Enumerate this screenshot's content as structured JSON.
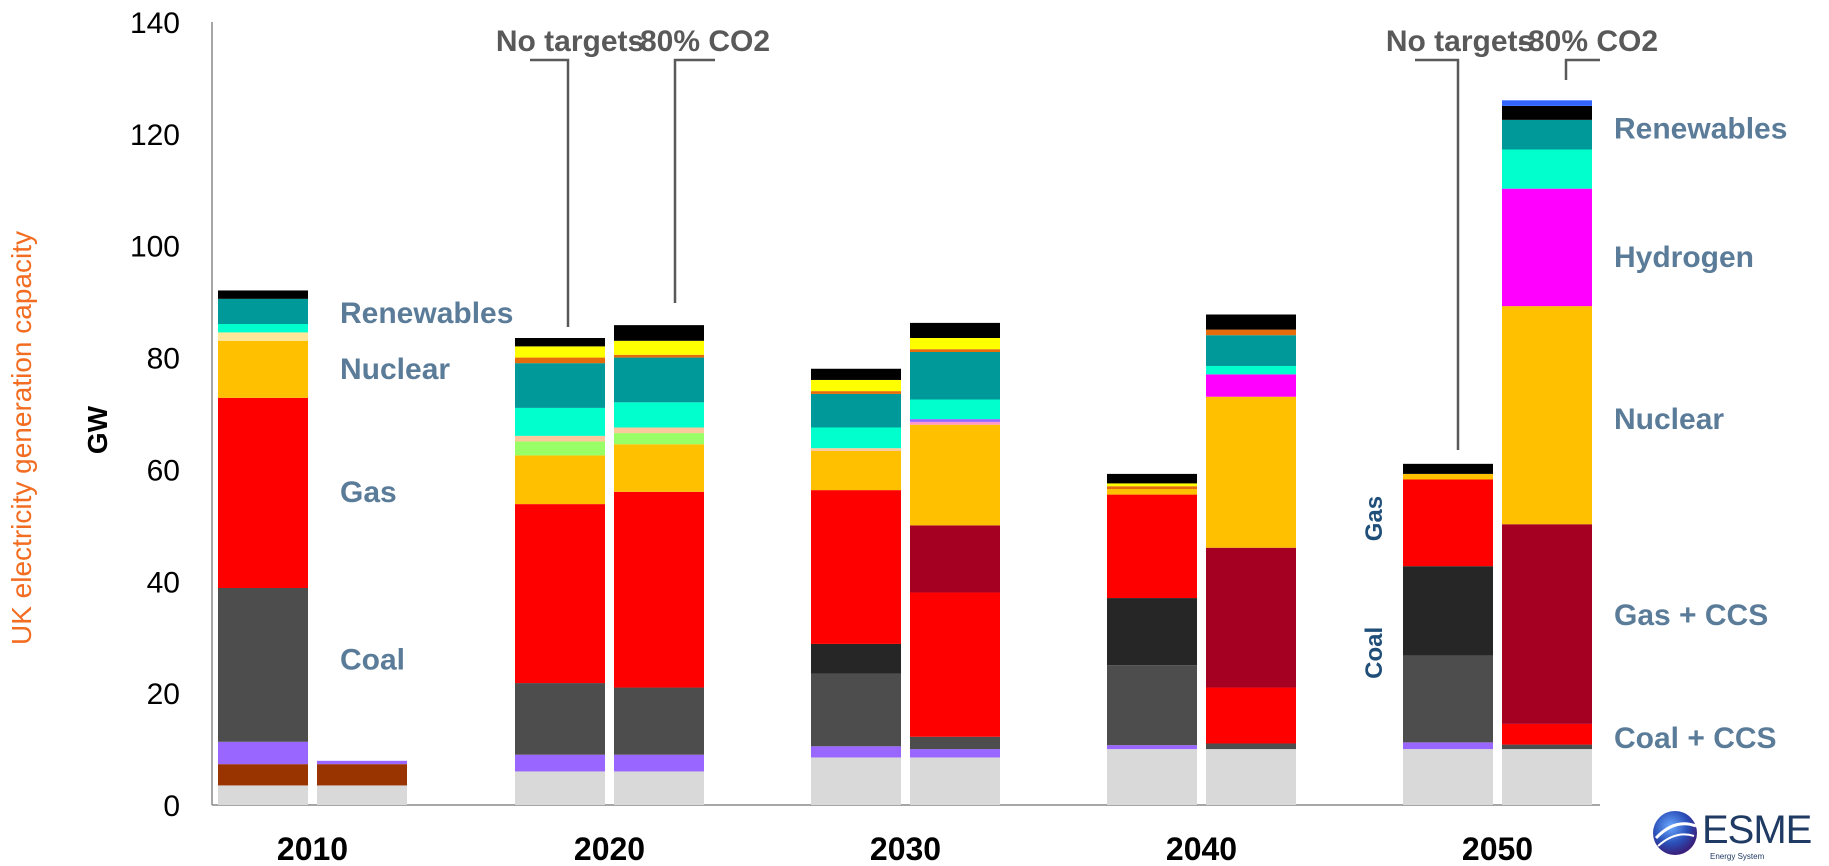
{
  "chart_data": {
    "type": "bar",
    "stacked": true,
    "side_title": "UK electricity generation capacity",
    "ylabel": "GW",
    "ylim": [
      0,
      140
    ],
    "yticks": [
      "0",
      "20",
      "40",
      "60",
      "80",
      "100",
      "120",
      "140"
    ],
    "groups": [
      "2010",
      "2020",
      "2030",
      "2040",
      "2050"
    ],
    "scenario_labels": [
      {
        "group": "2020",
        "text": "No targets"
      },
      {
        "group": "2020",
        "text": "-80% CO2"
      },
      {
        "group": "2050",
        "text": "No targets"
      },
      {
        "group": "2050",
        "text": "-80% CO2"
      }
    ],
    "segment_colors": {
      "base_grey": "#d9d9d9",
      "brown": "#993300",
      "violet": "#9966ff",
      "coal": "#4d4d4d",
      "coal_ccs": "#262626",
      "gas": "#ff0000",
      "gas_ccs": "#a50021",
      "nuclear": "#ffc000",
      "light_green": "#99ff66",
      "peach": "#fbc99b",
      "cream": "#ffe699",
      "pink": "#ff99cc",
      "mint": "#00ffcc",
      "teal": "#009999",
      "orange": "#e46c0a",
      "yellow": "#ffff00",
      "black": "#000000",
      "hydrogen": "#ff00ff",
      "blue": "#3366ff"
    },
    "bars": [
      {
        "group": "2010",
        "scenario": "",
        "segments": [
          {
            "k": "base_grey",
            "v": 3.5
          },
          {
            "k": "brown",
            "v": 3.8
          },
          {
            "k": "violet",
            "v": 4
          },
          {
            "k": "coal",
            "v": 27.5
          },
          {
            "k": "gas",
            "v": 34
          },
          {
            "k": "nuclear",
            "v": 10.2
          },
          {
            "k": "cream",
            "v": 1.5
          },
          {
            "k": "mint",
            "v": 1.5
          },
          {
            "k": "teal",
            "v": 4.5
          },
          {
            "k": "black",
            "v": 1.5
          }
        ]
      },
      {
        "group": "2010",
        "scenario": "",
        "segments": [
          {
            "k": "base_grey",
            "v": 3.5
          },
          {
            "k": "brown",
            "v": 3.8
          },
          {
            "k": "violet",
            "v": 0.6
          }
        ]
      },
      {
        "group": "2020",
        "scenario": "No targets",
        "segments": [
          {
            "k": "base_grey",
            "v": 6
          },
          {
            "k": "violet",
            "v": 3
          },
          {
            "k": "coal",
            "v": 12.8
          },
          {
            "k": "gas",
            "v": 32
          },
          {
            "k": "nuclear",
            "v": 8.7
          },
          {
            "k": "light_green",
            "v": 2.5
          },
          {
            "k": "peach",
            "v": 1
          },
          {
            "k": "mint",
            "v": 5
          },
          {
            "k": "teal",
            "v": 8
          },
          {
            "k": "orange",
            "v": 1
          },
          {
            "k": "yellow",
            "v": 2
          },
          {
            "k": "black",
            "v": 1.5
          }
        ]
      },
      {
        "group": "2020",
        "scenario": "-80% CO2",
        "segments": [
          {
            "k": "base_grey",
            "v": 6
          },
          {
            "k": "violet",
            "v": 3
          },
          {
            "k": "coal",
            "v": 12
          },
          {
            "k": "gas",
            "v": 35
          },
          {
            "k": "nuclear",
            "v": 8.5
          },
          {
            "k": "light_green",
            "v": 2
          },
          {
            "k": "peach",
            "v": 1
          },
          {
            "k": "mint",
            "v": 4.5
          },
          {
            "k": "teal",
            "v": 8
          },
          {
            "k": "orange",
            "v": 0.5
          },
          {
            "k": "yellow",
            "v": 2.5
          },
          {
            "k": "black",
            "v": 2.8
          }
        ]
      },
      {
        "group": "2030",
        "scenario": "No targets",
        "segments": [
          {
            "k": "base_grey",
            "v": 8.5
          },
          {
            "k": "violet",
            "v": 2
          },
          {
            "k": "coal",
            "v": 13
          },
          {
            "k": "coal_ccs",
            "v": 5.3
          },
          {
            "k": "gas",
            "v": 27.5
          },
          {
            "k": "nuclear",
            "v": 7
          },
          {
            "k": "peach",
            "v": 0.5
          },
          {
            "k": "mint",
            "v": 3.7
          },
          {
            "k": "teal",
            "v": 6
          },
          {
            "k": "orange",
            "v": 0.5
          },
          {
            "k": "yellow",
            "v": 2
          },
          {
            "k": "black",
            "v": 2
          }
        ]
      },
      {
        "group": "2030",
        "scenario": "-80% CO2",
        "segments": [
          {
            "k": "base_grey",
            "v": 8.5
          },
          {
            "k": "violet",
            "v": 1.5
          },
          {
            "k": "coal",
            "v": 2.2
          },
          {
            "k": "gas",
            "v": 25.8
          },
          {
            "k": "gas_ccs",
            "v": 12
          },
          {
            "k": "nuclear",
            "v": 18
          },
          {
            "k": "pink",
            "v": 0.5
          },
          {
            "k": "violet",
            "v": 0.5
          },
          {
            "k": "mint",
            "v": 3.5
          },
          {
            "k": "teal",
            "v": 8.5
          },
          {
            "k": "orange",
            "v": 0.5
          },
          {
            "k": "yellow",
            "v": 2
          },
          {
            "k": "black",
            "v": 2.7
          }
        ]
      },
      {
        "group": "2040",
        "scenario": "No targets",
        "segments": [
          {
            "k": "base_grey",
            "v": 10
          },
          {
            "k": "violet",
            "v": 0.7
          },
          {
            "k": "coal",
            "v": 14.3
          },
          {
            "k": "coal_ccs",
            "v": 12
          },
          {
            "k": "gas",
            "v": 18.5
          },
          {
            "k": "nuclear",
            "v": 1
          },
          {
            "k": "orange",
            "v": 0.5
          },
          {
            "k": "yellow",
            "v": 0.5
          },
          {
            "k": "black",
            "v": 1.7
          }
        ]
      },
      {
        "group": "2040",
        "scenario": "-80% CO2",
        "segments": [
          {
            "k": "base_grey",
            "v": 10
          },
          {
            "k": "coal",
            "v": 1
          },
          {
            "k": "gas",
            "v": 10
          },
          {
            "k": "gas_ccs",
            "v": 25
          },
          {
            "k": "nuclear",
            "v": 27
          },
          {
            "k": "hydrogen",
            "v": 4
          },
          {
            "k": "mint",
            "v": 1.5
          },
          {
            "k": "teal",
            "v": 5.5
          },
          {
            "k": "orange",
            "v": 1
          },
          {
            "k": "black",
            "v": 2.7
          }
        ]
      },
      {
        "group": "2050",
        "scenario": "No targets",
        "segments": [
          {
            "k": "base_grey",
            "v": 10
          },
          {
            "k": "violet",
            "v": 1.2
          },
          {
            "k": "coal",
            "v": 15.5
          },
          {
            "k": "coal_ccs",
            "v": 16
          },
          {
            "k": "gas",
            "v": 15.5
          },
          {
            "k": "nuclear",
            "v": 1
          },
          {
            "k": "black",
            "v": 1.8
          }
        ]
      },
      {
        "group": "2050",
        "scenario": "-80% CO2",
        "segments": [
          {
            "k": "base_grey",
            "v": 10
          },
          {
            "k": "coal",
            "v": 0.8
          },
          {
            "k": "gas",
            "v": 3.7
          },
          {
            "k": "gas_ccs",
            "v": 35.7
          },
          {
            "k": "nuclear",
            "v": 39
          },
          {
            "k": "hydrogen",
            "v": 21
          },
          {
            "k": "mint",
            "v": 7
          },
          {
            "k": "teal",
            "v": 5.3
          },
          {
            "k": "black",
            "v": 2.5
          },
          {
            "k": "blue",
            "v": 1
          }
        ]
      }
    ],
    "annotations": [
      {
        "text": "Renewables",
        "y": 88,
        "color": "#5b7c99",
        "near": "2010"
      },
      {
        "text": "Nuclear",
        "y": 78,
        "color": "#5b7c99",
        "near": "2010"
      },
      {
        "text": "Gas",
        "y": 56,
        "color": "#5b7c99",
        "near": "2010"
      },
      {
        "text": "Coal",
        "y": 26,
        "color": "#5b7c99",
        "near": "2010"
      },
      {
        "text": "Renewables",
        "y": 121,
        "color": "#5b7c99",
        "near": "2050"
      },
      {
        "text": "Hydrogen",
        "y": 98,
        "color": "#5b7c99",
        "near": "2050"
      },
      {
        "text": "Nuclear",
        "y": 69,
        "color": "#5b7c99",
        "near": "2050"
      },
      {
        "text": "Gas + CCS",
        "y": 34,
        "color": "#5b7c99",
        "near": "2050"
      },
      {
        "text": "Coal + CCS",
        "y": 12,
        "color": "#5b7c99",
        "near": "2050"
      },
      {
        "text": "Gas",
        "y": 53,
        "color": "#1f4e79",
        "near": "2050-left",
        "rotated": true
      },
      {
        "text": "Coal",
        "y": 29,
        "color": "#1f4e79",
        "near": "2050-left",
        "rotated": true
      }
    ]
  },
  "logo": {
    "text": "ESME",
    "subtitle": "Energy System"
  }
}
